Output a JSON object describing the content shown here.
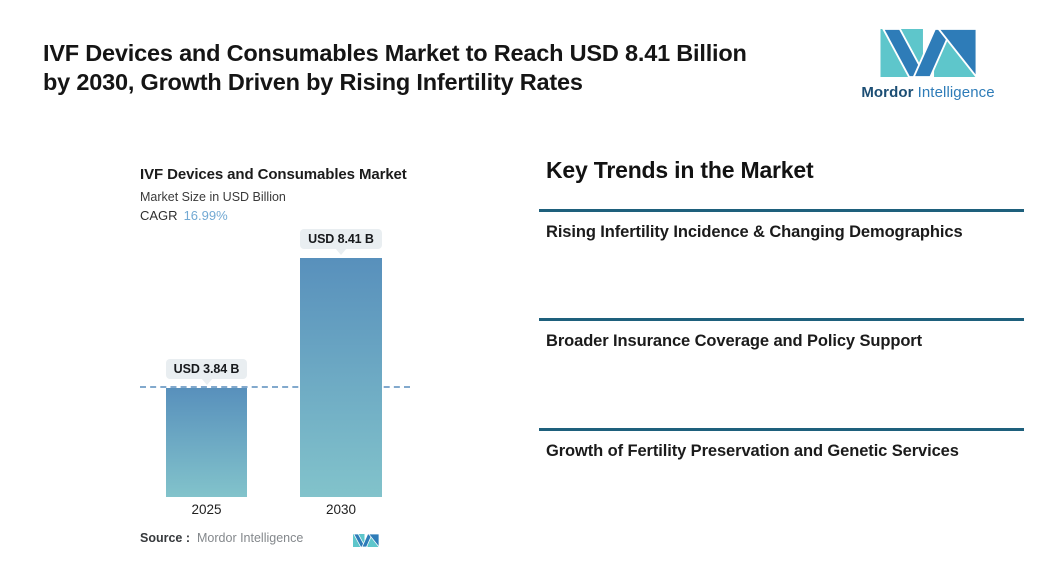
{
  "header": {
    "headline_line1": "IVF Devices and Consumables Market to Reach USD 8.41 Billion",
    "headline_line2": "by 2030, Growth Driven by Rising Infertility Rates"
  },
  "brand": {
    "logo_icon": "mordor-intelligence-logo",
    "name_bold": "Mordor",
    "name_light": "Intelligence"
  },
  "chart_data": {
    "type": "bar",
    "title": "IVF Devices and Consumables Market",
    "subtitle": "Market Size in USD Billion",
    "cagr_label": "CAGR",
    "cagr_value": "16.99%",
    "categories": [
      "2025",
      "2030"
    ],
    "values": [
      3.84,
      8.41
    ],
    "data_labels": [
      "USD 3.84 B",
      "USD 8.41 B"
    ],
    "unit": "USD Billion",
    "ylim": [
      0,
      8.8
    ],
    "grid": false,
    "legend": "none",
    "reference_line": {
      "value": 3.84,
      "style": "dashed"
    },
    "source_label": "Source :",
    "source_value": "Mordor Intelligence"
  },
  "trends": {
    "heading": "Key Trends in the Market",
    "items": [
      {
        "label": "Rising Infertility Incidence & Changing Demographics"
      },
      {
        "label": "Broader Insurance Coverage and Policy Support"
      },
      {
        "label": "Growth of Fertility Preservation and Genetic Services"
      }
    ]
  },
  "colors": {
    "background": "#FFFFFF",
    "headline_text": "#151515",
    "bar_top": "#5890BC",
    "bar_bottom": "#82C3CB",
    "dashed_line": "#82A9CD",
    "divider": "#1E607C",
    "cagr_value": "#72A9D3",
    "pill_bg": "#E9EEF1",
    "brand_teal": "#5EC6CB",
    "brand_blue": "#2E7CB8",
    "brand_navy": "#1C4E74",
    "source_text": "#84888C"
  }
}
